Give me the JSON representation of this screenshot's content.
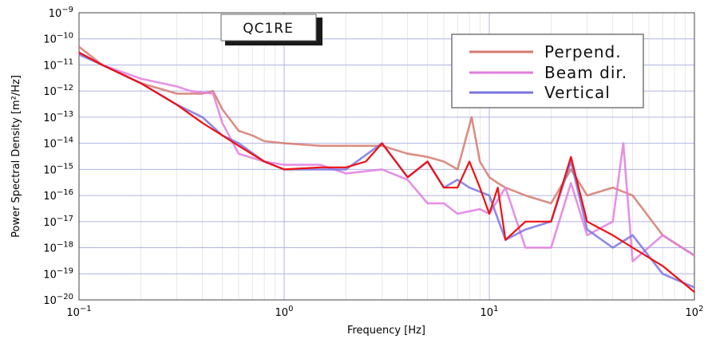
{
  "chart_data": {
    "type": "line",
    "title": "QC1RE",
    "xlabel": "Frequency [Hz]",
    "ylabel": "Power Spectral Density [m²/Hz]",
    "xscale": "log",
    "yscale": "log",
    "xlim": [
      0.1,
      100
    ],
    "ylim": [
      1e-20,
      1e-09
    ],
    "x_tick_labels": [
      {
        "base": "10",
        "exp": "−1"
      },
      {
        "base": "10",
        "exp": "0"
      },
      {
        "base": "10",
        "exp": "1"
      },
      {
        "base": "10",
        "exp": "2"
      }
    ],
    "y_tick_labels": [
      {
        "base": "10",
        "exp": "−9"
      },
      {
        "base": "10",
        "exp": "−10"
      },
      {
        "base": "10",
        "exp": "−11"
      },
      {
        "base": "10",
        "exp": "−12"
      },
      {
        "base": "10",
        "exp": "−13"
      },
      {
        "base": "10",
        "exp": "−14"
      },
      {
        "base": "10",
        "exp": "−15"
      },
      {
        "base": "10",
        "exp": "−16"
      },
      {
        "base": "10",
        "exp": "−17"
      },
      {
        "base": "10",
        "exp": "−18"
      },
      {
        "base": "10",
        "exp": "−19"
      },
      {
        "base": "10",
        "exp": "−20"
      }
    ],
    "grid": true,
    "legend_position": "top-right",
    "colors": {
      "perpend": "#d47a6e",
      "beam": "#e07ee0",
      "vertical": "#7a74e0",
      "extra": "#ee1111",
      "grid_major": "#b0b4e4",
      "grid_minor": "#d8d8d8"
    },
    "series": [
      {
        "name": "Perpend.",
        "color_key": "perpend",
        "x": [
          0.1,
          0.13,
          0.2,
          0.3,
          0.4,
          0.45,
          0.5,
          0.6,
          0.7,
          0.8,
          1.0,
          1.5,
          2.0,
          2.5,
          3.0,
          4.0,
          5.0,
          6.0,
          7.0,
          8.2,
          9.0,
          10.0,
          11.0,
          12.0,
          15.0,
          20.0,
          25.0,
          30.0,
          40.0,
          50.0,
          70.0,
          100.0
        ],
        "y": [
          5e-11,
          1e-11,
          2e-12,
          8e-13,
          8e-13,
          1e-12,
          2e-13,
          3e-14,
          2e-14,
          1.2e-14,
          1e-14,
          8e-15,
          8e-15,
          8e-15,
          8e-15,
          4e-15,
          3e-15,
          2e-15,
          1e-15,
          1e-13,
          2e-15,
          5e-16,
          3e-16,
          2e-16,
          1e-16,
          5e-17,
          1e-15,
          1e-16,
          2e-16,
          1e-16,
          3e-18,
          5e-19
        ]
      },
      {
        "name": "Beam dir.",
        "color_key": "beam",
        "x": [
          0.1,
          0.13,
          0.2,
          0.3,
          0.35,
          0.45,
          0.5,
          0.6,
          0.8,
          1.0,
          1.5,
          2.0,
          3.0,
          4.0,
          5.0,
          6.0,
          7.0,
          9.0,
          10.0,
          12.0,
          15.0,
          20.0,
          25.0,
          30.0,
          40.0,
          45.0,
          50.0,
          70.0,
          100.0
        ],
        "y": [
          3e-11,
          1e-11,
          3e-12,
          1.5e-12,
          1e-12,
          8e-13,
          6e-14,
          4e-15,
          2e-15,
          1.5e-15,
          1.5e-15,
          7e-16,
          1e-15,
          4e-16,
          5e-17,
          5e-17,
          2e-17,
          3e-17,
          2e-17,
          2e-16,
          1e-18,
          1e-18,
          3e-16,
          3e-18,
          1e-17,
          1e-14,
          3e-19,
          3e-18,
          5e-19
        ]
      },
      {
        "name": "Vertical",
        "color_key": "vertical",
        "x": [
          0.1,
          0.13,
          0.2,
          0.3,
          0.4,
          0.5,
          0.6,
          0.8,
          1.0,
          1.5,
          2.0,
          3.0,
          4.0,
          5.0,
          6.0,
          7.0,
          8.0,
          10.0,
          12.0,
          15.0,
          20.0,
          25.0,
          30.0,
          40.0,
          50.0,
          70.0,
          100.0
        ],
        "y": [
          2.5e-11,
          1e-11,
          2e-12,
          3e-13,
          1e-13,
          2e-14,
          1e-14,
          2e-15,
          1e-15,
          1e-15,
          1e-15,
          1e-14,
          5e-16,
          2e-15,
          2e-16,
          4e-16,
          2e-16,
          1e-16,
          2e-18,
          5e-18,
          1e-17,
          2e-15,
          5e-18,
          1e-18,
          3e-18,
          1e-19,
          3e-20
        ]
      },
      {
        "color_key": "extra",
        "x": [
          0.1,
          0.13,
          0.2,
          0.3,
          0.4,
          0.5,
          0.6,
          0.8,
          1.0,
          1.5,
          2.0,
          2.5,
          3.0,
          4.0,
          5.0,
          6.0,
          7.0,
          8.0,
          9.0,
          10.0,
          11.0,
          12.0,
          15.0,
          20.0,
          25.0,
          30.0,
          40.0,
          50.0,
          70.0,
          100.0
        ],
        "y": [
          3e-11,
          1e-11,
          2e-12,
          3e-13,
          6e-14,
          2e-14,
          8e-15,
          2e-15,
          1e-15,
          1.2e-15,
          1.2e-15,
          2e-15,
          1e-14,
          5e-16,
          2e-15,
          2e-16,
          2e-16,
          2e-15,
          2e-16,
          2e-17,
          2e-16,
          2e-18,
          1e-17,
          1e-17,
          3e-15,
          1e-17,
          3e-18,
          1e-18,
          2e-19,
          2e-20
        ]
      }
    ]
  }
}
